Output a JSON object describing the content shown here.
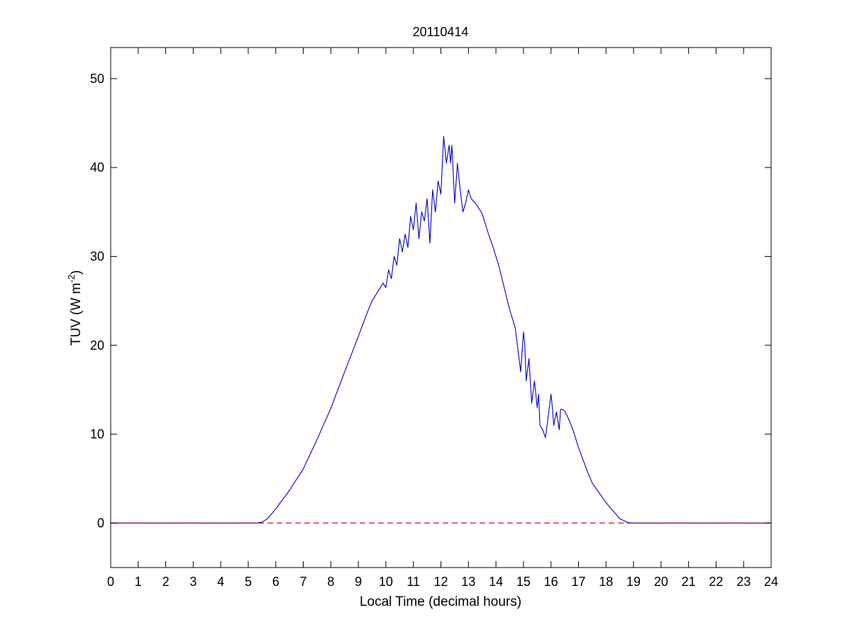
{
  "chart_data": {
    "type": "line",
    "title": "20110414",
    "xlabel": "Local Time (decimal hours)",
    "ylabel": {
      "main": "TUV (W m",
      "sup": "-2",
      "close": ")"
    },
    "xlim": [
      0,
      24
    ],
    "ylim": [
      -5,
      53.5
    ],
    "xticks": [
      0,
      1,
      2,
      3,
      4,
      5,
      6,
      7,
      8,
      9,
      10,
      11,
      12,
      13,
      14,
      15,
      16,
      17,
      18,
      19,
      20,
      21,
      22,
      23,
      24
    ],
    "yticks": [
      0,
      10,
      20,
      30,
      40,
      50
    ],
    "grid": false,
    "legend": "none",
    "series": [
      {
        "color": "#0000c8",
        "style": "solid",
        "x": [
          0,
          5.3,
          5.5,
          5.7,
          6.0,
          6.5,
          7.0,
          7.5,
          8.0,
          8.5,
          9.0,
          9.3,
          9.5,
          9.7,
          9.9,
          10.0,
          10.1,
          10.2,
          10.3,
          10.4,
          10.5,
          10.6,
          10.7,
          10.8,
          10.9,
          11.0,
          11.1,
          11.2,
          11.3,
          11.4,
          11.5,
          11.6,
          11.7,
          11.8,
          11.9,
          12.0,
          12.1,
          12.15,
          12.2,
          12.3,
          12.35,
          12.4,
          12.5,
          12.6,
          12.7,
          12.8,
          12.9,
          13.0,
          13.1,
          13.3,
          13.5,
          13.7,
          13.9,
          14.1,
          14.3,
          14.5,
          14.7,
          14.8,
          14.9,
          15.0,
          15.05,
          15.1,
          15.2,
          15.3,
          15.4,
          15.5,
          15.55,
          15.6,
          15.7,
          15.8,
          15.9,
          16.0,
          16.05,
          16.1,
          16.2,
          16.3,
          16.35,
          16.4,
          16.5,
          16.6,
          16.8,
          17.0,
          17.3,
          17.5,
          18.0,
          18.5,
          18.8,
          19.0,
          19.5,
          24
        ],
        "y": [
          0,
          0,
          0.1,
          0.5,
          1.6,
          3.7,
          6.1,
          9.4,
          12.9,
          17.0,
          21.0,
          23.5,
          25.0,
          26.0,
          27.0,
          26.5,
          28.5,
          27.5,
          30.0,
          29.0,
          32.0,
          30.5,
          32.5,
          31.0,
          34.5,
          33.0,
          36.0,
          32.0,
          35.0,
          34.0,
          36.5,
          31.5,
          37.5,
          35.0,
          38.5,
          37.0,
          43.5,
          42.0,
          40.5,
          42.5,
          40.5,
          42.5,
          36.0,
          40.5,
          37.5,
          35.0,
          36.0,
          37.5,
          36.5,
          35.8,
          34.8,
          32.8,
          31.0,
          29.0,
          26.5,
          24.0,
          22.0,
          19.5,
          17.0,
          21.5,
          20.0,
          16.0,
          18.5,
          13.5,
          16.0,
          13.0,
          14.5,
          11.0,
          10.5,
          9.6,
          12.0,
          14.5,
          13.0,
          11.0,
          12.5,
          10.5,
          12.8,
          12.8,
          12.6,
          12.0,
          10.5,
          8.5,
          6.0,
          4.5,
          2.3,
          0.5,
          0.05,
          0,
          0,
          0
        ]
      },
      {
        "color": "#c80000",
        "style": "dashed",
        "x": [
          0,
          24
        ],
        "y": [
          0,
          0
        ]
      }
    ]
  }
}
